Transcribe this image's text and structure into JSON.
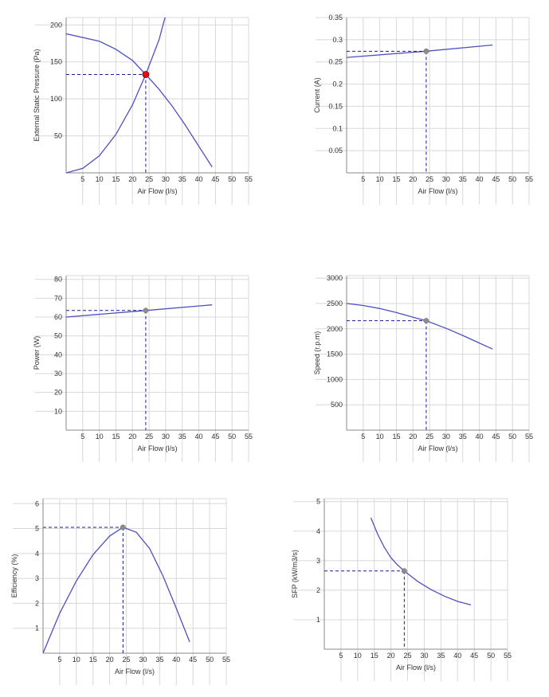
{
  "colors": {
    "curve": "#5050c0",
    "grid": "#d8d8d8",
    "axis": "#8a8a8a",
    "guide": "#1a1a9a",
    "point_main": "#e01010",
    "point": "#8c8c8c"
  },
  "chart_data": [
    {
      "type": "line",
      "ylabel": "External Static Pressure (Pa)",
      "xlabel": "Air Flow (l/s)",
      "xlim": [
        0,
        55
      ],
      "ylim": [
        0,
        210
      ],
      "xticks": [
        5,
        10,
        15,
        20,
        25,
        30,
        35,
        40,
        45,
        50,
        55
      ],
      "yticks": [
        50,
        100,
        150,
        200
      ],
      "series": [
        {
          "x": [
            0,
            10,
            15,
            20,
            24,
            28,
            32,
            36,
            40,
            44
          ],
          "y": [
            188,
            178,
            167,
            152,
            133,
            113,
            90,
            64,
            36,
            8
          ]
        },
        {
          "x": [
            0,
            5,
            10,
            15,
            20,
            24,
            28,
            31
          ],
          "y": [
            0,
            6,
            23,
            52,
            92,
            133,
            180,
            230
          ]
        }
      ],
      "operating_point": {
        "x": 24,
        "y": 133,
        "style": "main"
      }
    },
    {
      "type": "line",
      "ylabel": "Current (A)",
      "xlabel": "Air Flow (l/s)",
      "xlim": [
        0,
        55
      ],
      "ylim": [
        0,
        0.35
      ],
      "xticks": [
        5,
        10,
        15,
        20,
        25,
        30,
        35,
        40,
        45,
        50,
        55
      ],
      "yticks": [
        0.05,
        0.1,
        0.15,
        0.2,
        0.25,
        0.3,
        0.35
      ],
      "series": [
        {
          "x": [
            0,
            24,
            44
          ],
          "y": [
            0.26,
            0.274,
            0.288
          ]
        }
      ],
      "operating_point": {
        "x": 24,
        "y": 0.274,
        "style": "normal"
      }
    },
    {
      "type": "line",
      "ylabel": "Power (W)",
      "xlabel": "Air Flow (l/s)",
      "xlim": [
        0,
        55
      ],
      "ylim": [
        0,
        82
      ],
      "xticks": [
        5,
        10,
        15,
        20,
        25,
        30,
        35,
        40,
        45,
        50,
        55
      ],
      "yticks": [
        10,
        20,
        30,
        40,
        50,
        60,
        70,
        80
      ],
      "series": [
        {
          "x": [
            0,
            24,
            44
          ],
          "y": [
            60,
            63.5,
            66.5
          ]
        }
      ],
      "operating_point": {
        "x": 24,
        "y": 63.5,
        "style": "normal"
      }
    },
    {
      "type": "line",
      "ylabel": "Speed (r.p.m)",
      "xlabel": "Air Flow (l/s)",
      "xlim": [
        0,
        55
      ],
      "ylim": [
        0,
        3050
      ],
      "xticks": [
        5,
        10,
        15,
        20,
        25,
        30,
        35,
        40,
        45,
        50,
        55
      ],
      "yticks": [
        500,
        1000,
        1500,
        2000,
        2500,
        3000
      ],
      "series": [
        {
          "x": [
            0,
            5,
            10,
            15,
            20,
            24,
            30,
            35,
            40,
            44
          ],
          "y": [
            2500,
            2460,
            2400,
            2320,
            2230,
            2160,
            2010,
            1870,
            1720,
            1600
          ]
        }
      ],
      "operating_point": {
        "x": 24,
        "y": 2160,
        "style": "normal"
      }
    },
    {
      "type": "line",
      "ylabel": "Efficiency (%)",
      "xlabel": "Air Flow (l/s)",
      "xlim": [
        0,
        55
      ],
      "ylim": [
        0,
        6.2
      ],
      "xticks": [
        5,
        10,
        15,
        20,
        25,
        30,
        35,
        40,
        45,
        50,
        55
      ],
      "yticks": [
        1,
        2,
        3,
        4,
        5,
        6
      ],
      "series": [
        {
          "x": [
            0,
            5,
            10,
            15,
            20,
            24,
            28,
            32,
            36,
            40,
            44
          ],
          "y": [
            0,
            1.6,
            2.9,
            3.95,
            4.7,
            5.05,
            4.85,
            4.2,
            3.1,
            1.8,
            0.45
          ]
        }
      ],
      "operating_point": {
        "x": 24,
        "y": 5.05,
        "style": "normal"
      }
    },
    {
      "type": "line",
      "ylabel": "SFP (kW/m3/s)",
      "xlabel": "Air Flow (l/s)",
      "xlim": [
        0,
        55
      ],
      "ylim": [
        0,
        5.1
      ],
      "xticks": [
        5,
        10,
        15,
        20,
        25,
        30,
        35,
        40,
        45,
        50,
        55
      ],
      "yticks": [
        1,
        2,
        3,
        4,
        5
      ],
      "series": [
        {
          "x": [
            14,
            16,
            18,
            20,
            22,
            24,
            28,
            32,
            36,
            40,
            44
          ],
          "y": [
            4.45,
            3.9,
            3.45,
            3.1,
            2.85,
            2.65,
            2.3,
            2.02,
            1.8,
            1.62,
            1.5
          ]
        }
      ],
      "operating_point": {
        "x": 24,
        "y": 2.65,
        "style": "normal"
      }
    }
  ]
}
